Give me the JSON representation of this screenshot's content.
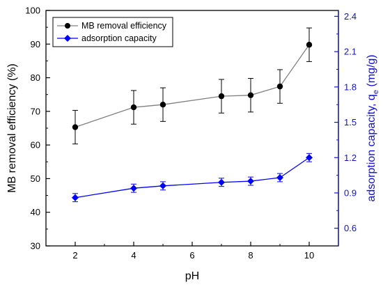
{
  "chart_data": {
    "type": "line",
    "x": [
      2,
      4,
      5,
      7,
      8,
      9,
      10
    ],
    "xlabel": "pH",
    "xlim": [
      1,
      11
    ],
    "xticks": [
      2,
      4,
      6,
      8,
      10
    ],
    "ylabel_left": "MB removal efficiency (%)",
    "ylim_left": [
      30,
      100
    ],
    "yticks_left": [
      30,
      40,
      50,
      60,
      70,
      80,
      90,
      100
    ],
    "ylabel_right_main": "adsorption capacity, q",
    "ylabel_right_sub": "e",
    "ylabel_right_unit": " (mg/g)",
    "ylim_right": [
      0.45,
      2.45
    ],
    "yticks_right": [
      "0.6",
      "0.9",
      "1.2",
      "1.5",
      "1.8",
      "2.1",
      "2.4"
    ],
    "legend_position": "top-left",
    "grid": false,
    "series": [
      {
        "name": "MB removal efficiency",
        "axis": "left",
        "marker": "circle",
        "color": "#000000",
        "line_color": "#808080",
        "values": [
          65.3,
          71.2,
          72.0,
          74.5,
          74.8,
          77.4,
          89.8
        ],
        "errors": [
          5.0,
          5.0,
          5.0,
          5.0,
          5.0,
          5.0,
          5.0
        ]
      },
      {
        "name": "adsorption capacity",
        "axis": "right",
        "marker": "diamond",
        "color": "#0000ff",
        "line_color": "#0000ff",
        "values": [
          0.86,
          0.94,
          0.96,
          0.99,
          1.0,
          1.03,
          1.2
        ],
        "errors": [
          0.035,
          0.035,
          0.035,
          0.035,
          0.035,
          0.035,
          0.035
        ]
      }
    ]
  }
}
